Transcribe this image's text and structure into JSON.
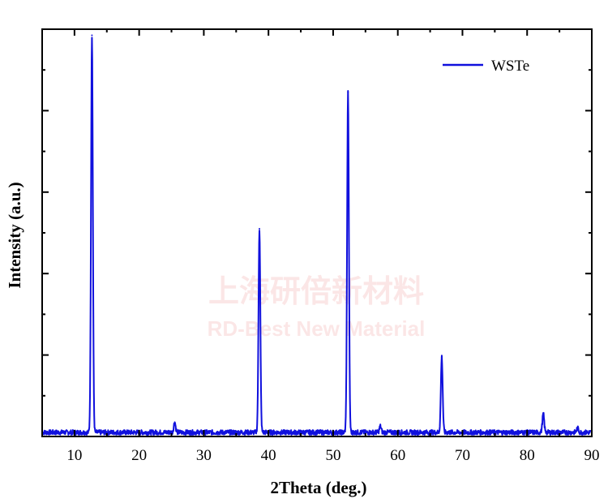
{
  "chart_data": {
    "type": "line",
    "title": "",
    "xlabel": "2Theta (deg.)",
    "ylabel": "Intensity (a.u.)",
    "xlim": [
      5,
      90
    ],
    "ylim": [
      0,
      100
    ],
    "x_ticks": [
      10,
      20,
      30,
      40,
      50,
      60,
      70,
      80,
      90
    ],
    "y_tick_labels_shown": false,
    "grid": false,
    "legend_position": "top-right",
    "series": [
      {
        "name": "WSTe",
        "color": "#1010dd",
        "baseline": 1.0,
        "peaks": [
          {
            "x": 12.7,
            "y": 98.5
          },
          {
            "x": 25.5,
            "y": 3.5
          },
          {
            "x": 38.6,
            "y": 51.0
          },
          {
            "x": 52.3,
            "y": 84.5
          },
          {
            "x": 57.3,
            "y": 2.5
          },
          {
            "x": 66.8,
            "y": 19.5
          },
          {
            "x": 82.5,
            "y": 5.5
          },
          {
            "x": 87.8,
            "y": 2.0
          }
        ]
      }
    ]
  },
  "watermark": {
    "line1": "上海研倍新材料",
    "line2": "RD-Best New Material",
    "color": "#e24a4a"
  }
}
